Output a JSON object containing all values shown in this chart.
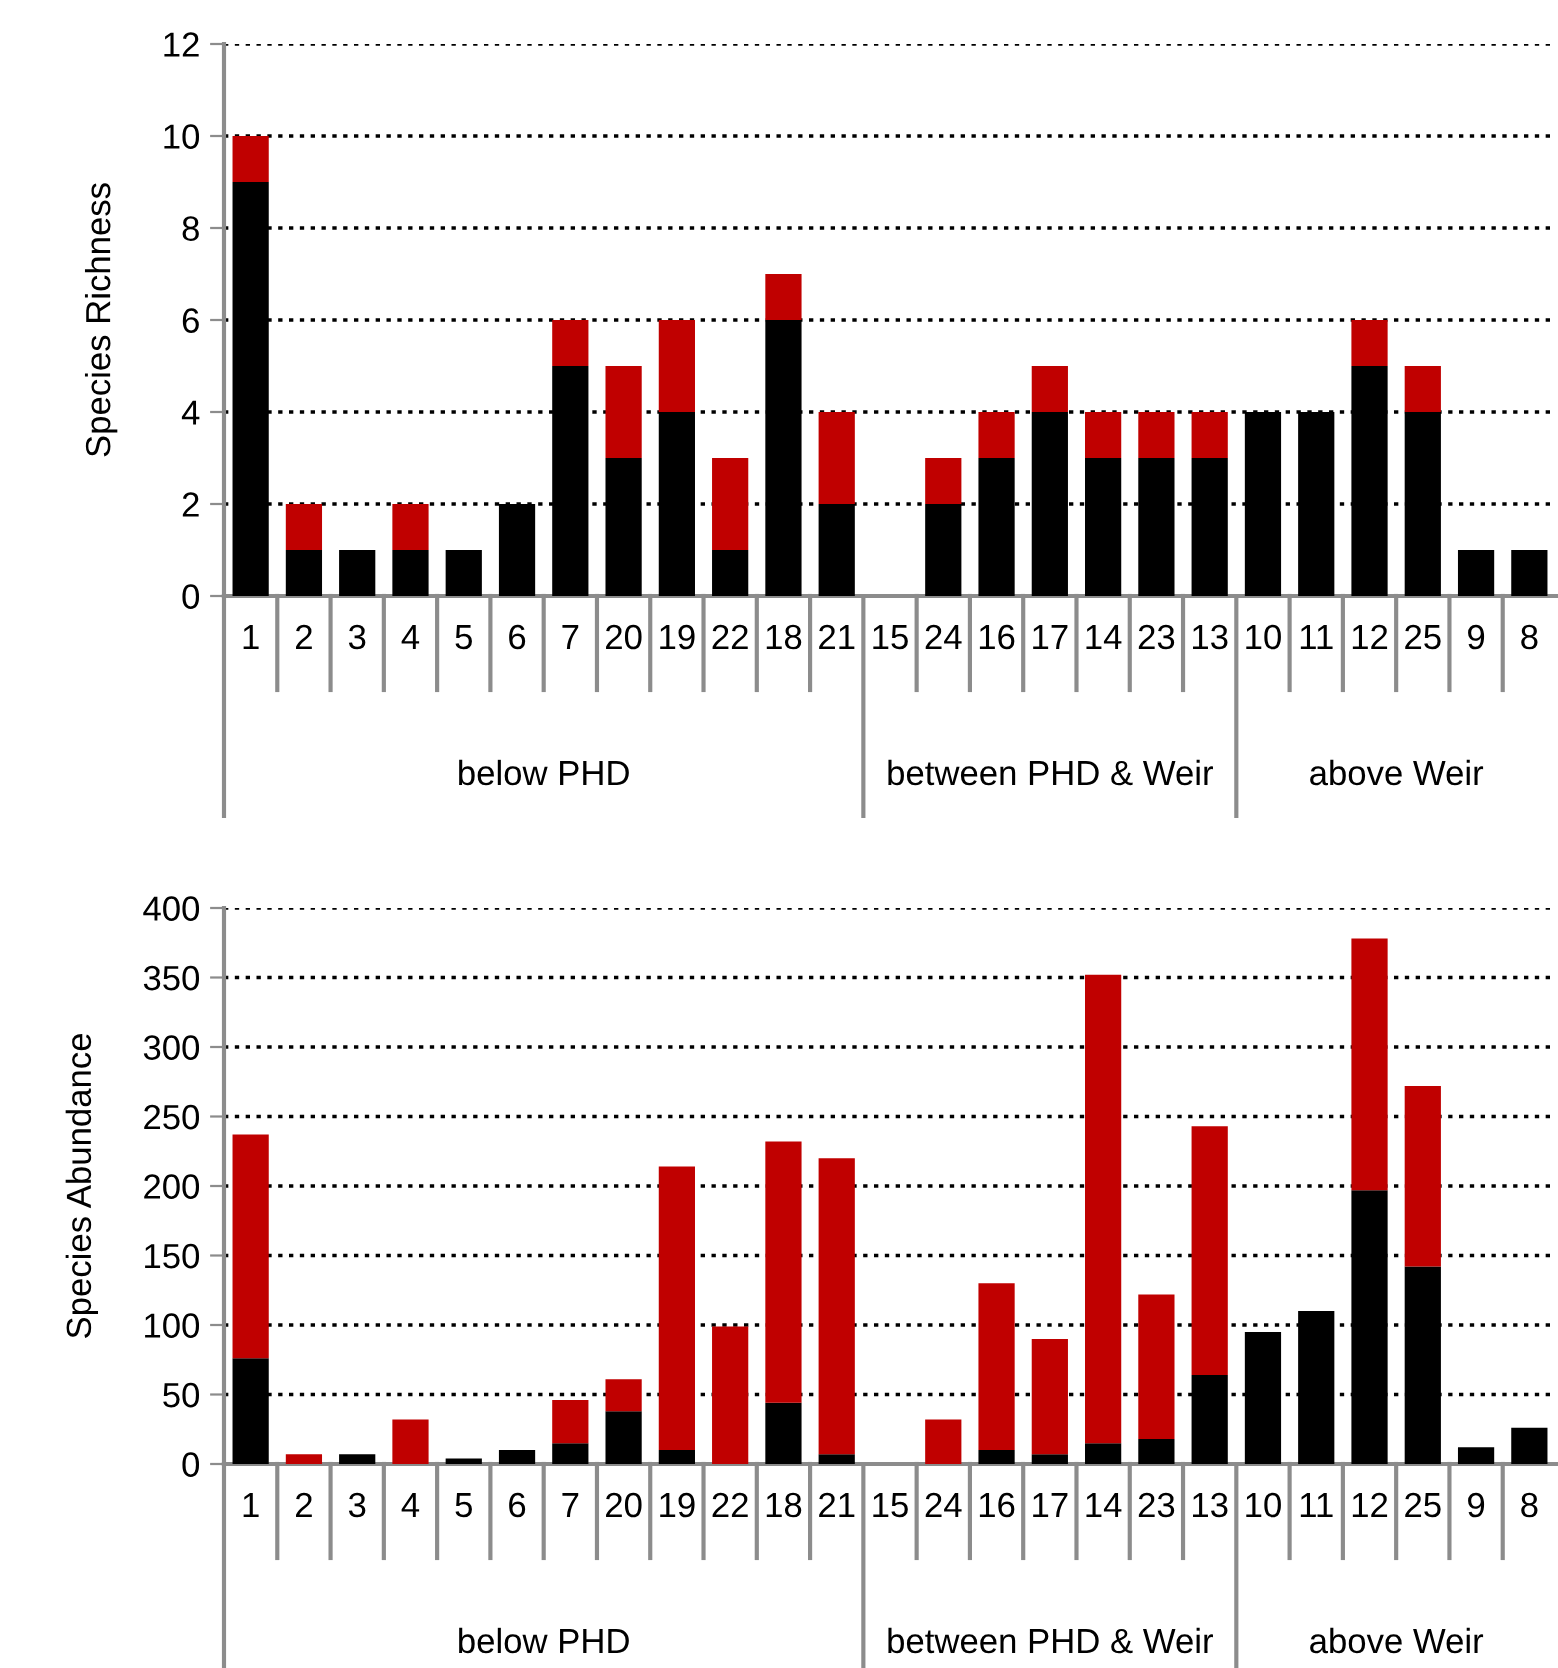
{
  "chart_data": [
    {
      "type": "bar",
      "ylabel": "Species Richness",
      "stacked": true,
      "grid": "y",
      "categories": [
        "1",
        "2",
        "3",
        "4",
        "5",
        "6",
        "7",
        "20",
        "19",
        "22",
        "18",
        "21",
        "15",
        "24",
        "16",
        "17",
        "14",
        "23",
        "13",
        "10",
        "11",
        "12",
        "25",
        "9",
        "8"
      ],
      "series": [
        {
          "color": "#000000",
          "values": [
            9,
            1,
            1,
            1,
            1,
            2,
            5,
            3,
            4,
            1,
            6,
            2,
            0,
            2,
            3,
            4,
            3,
            3,
            3,
            4,
            4,
            5,
            4,
            1,
            1
          ]
        },
        {
          "color": "#c00000",
          "values": [
            1,
            1,
            0,
            1,
            0,
            0,
            1,
            2,
            2,
            2,
            1,
            2,
            0,
            1,
            1,
            1,
            1,
            1,
            1,
            0,
            0,
            1,
            1,
            0,
            0
          ]
        }
      ],
      "ylim": [
        0,
        12
      ],
      "yticks": [
        0,
        2,
        4,
        6,
        8,
        10,
        12
      ],
      "annotations": [
        "below PHD",
        "between PHD & Weir",
        "above Weir"
      ]
    },
    {
      "type": "bar",
      "ylabel": "Species Abundance",
      "stacked": true,
      "grid": "y",
      "categories": [
        "1",
        "2",
        "3",
        "4",
        "5",
        "6",
        "7",
        "20",
        "19",
        "22",
        "18",
        "21",
        "15",
        "24",
        "16",
        "17",
        "14",
        "23",
        "13",
        "10",
        "11",
        "12",
        "25",
        "9",
        "8"
      ],
      "series": [
        {
          "color": "#000000",
          "values": [
            76,
            0,
            7,
            0,
            4,
            10,
            15,
            38,
            10,
            0,
            44,
            7,
            0,
            0,
            10,
            7,
            15,
            18,
            64,
            95,
            110,
            197,
            142,
            12,
            26
          ]
        },
        {
          "color": "#c00000",
          "values": [
            161,
            7,
            0,
            32,
            0,
            0,
            31,
            23,
            204,
            99,
            188,
            213,
            0,
            32,
            120,
            83,
            337,
            104,
            179,
            0,
            0,
            181,
            130,
            0,
            0
          ]
        }
      ],
      "ylim": [
        0,
        400
      ],
      "yticks": [
        0,
        50,
        100,
        150,
        200,
        250,
        300,
        350,
        400
      ],
      "annotations": [
        "below PHD",
        "between PHD & Weir",
        "above Weir"
      ]
    }
  ]
}
